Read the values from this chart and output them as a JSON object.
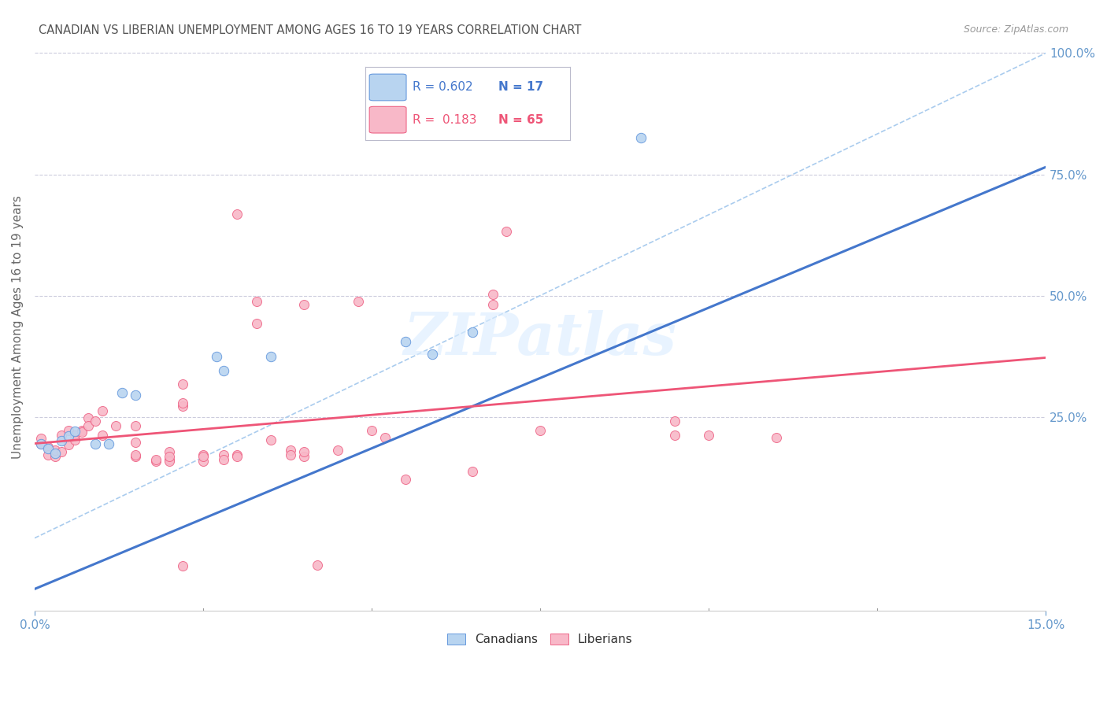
{
  "title": "CANADIAN VS LIBERIAN UNEMPLOYMENT AMONG AGES 16 TO 19 YEARS CORRELATION CHART",
  "source": "Source: ZipAtlas.com",
  "ylabel": "Unemployment Among Ages 16 to 19 years",
  "x_min": 0.0,
  "x_max": 0.15,
  "y_min": -0.15,
  "y_max": 1.02,
  "y_ticks_right": [
    0.25,
    0.5,
    0.75,
    1.0
  ],
  "y_tick_labels_right": [
    "25.0%",
    "50.0%",
    "75.0%",
    "100.0%"
  ],
  "legend_R_canadian": "0.602",
  "legend_N_canadian": "17",
  "legend_R_liberian": "0.183",
  "legend_N_liberian": "65",
  "canadian_color": "#b8d4f0",
  "liberian_color": "#f8b8c8",
  "canadian_edge_color": "#6699dd",
  "liberian_edge_color": "#ee6688",
  "canadian_line_color": "#4477cc",
  "liberian_line_color": "#ee5577",
  "diagonal_color": "#aaccee",
  "watermark": "ZIPatlas",
  "canadian_points": [
    [
      0.001,
      0.195
    ],
    [
      0.002,
      0.185
    ],
    [
      0.003,
      0.175
    ],
    [
      0.004,
      0.2
    ],
    [
      0.005,
      0.21
    ],
    [
      0.006,
      0.22
    ],
    [
      0.009,
      0.195
    ],
    [
      0.011,
      0.195
    ],
    [
      0.013,
      0.3
    ],
    [
      0.015,
      0.295
    ],
    [
      0.027,
      0.375
    ],
    [
      0.028,
      0.345
    ],
    [
      0.035,
      0.375
    ],
    [
      0.055,
      0.405
    ],
    [
      0.059,
      0.38
    ],
    [
      0.065,
      0.425
    ],
    [
      0.09,
      0.825
    ]
  ],
  "liberian_points": [
    [
      0.001,
      0.195
    ],
    [
      0.001,
      0.205
    ],
    [
      0.002,
      0.188
    ],
    [
      0.002,
      0.172
    ],
    [
      0.003,
      0.168
    ],
    [
      0.003,
      0.182
    ],
    [
      0.004,
      0.178
    ],
    [
      0.004,
      0.212
    ],
    [
      0.005,
      0.222
    ],
    [
      0.005,
      0.192
    ],
    [
      0.006,
      0.212
    ],
    [
      0.006,
      0.202
    ],
    [
      0.007,
      0.222
    ],
    [
      0.007,
      0.218
    ],
    [
      0.008,
      0.248
    ],
    [
      0.008,
      0.232
    ],
    [
      0.009,
      0.242
    ],
    [
      0.01,
      0.262
    ],
    [
      0.01,
      0.212
    ],
    [
      0.012,
      0.232
    ],
    [
      0.015,
      0.198
    ],
    [
      0.015,
      0.168
    ],
    [
      0.015,
      0.172
    ],
    [
      0.015,
      0.232
    ],
    [
      0.018,
      0.158
    ],
    [
      0.018,
      0.162
    ],
    [
      0.02,
      0.162
    ],
    [
      0.02,
      0.158
    ],
    [
      0.02,
      0.178
    ],
    [
      0.02,
      0.168
    ],
    [
      0.022,
      0.318
    ],
    [
      0.022,
      0.272
    ],
    [
      0.022,
      0.278
    ],
    [
      0.025,
      0.158
    ],
    [
      0.025,
      0.172
    ],
    [
      0.025,
      0.168
    ],
    [
      0.028,
      0.172
    ],
    [
      0.028,
      0.162
    ],
    [
      0.03,
      0.172
    ],
    [
      0.03,
      0.168
    ],
    [
      0.033,
      0.442
    ],
    [
      0.033,
      0.488
    ],
    [
      0.035,
      0.202
    ],
    [
      0.038,
      0.182
    ],
    [
      0.038,
      0.172
    ],
    [
      0.04,
      0.168
    ],
    [
      0.04,
      0.178
    ],
    [
      0.042,
      -0.055
    ],
    [
      0.045,
      0.182
    ],
    [
      0.048,
      0.488
    ],
    [
      0.05,
      0.222
    ],
    [
      0.052,
      0.208
    ],
    [
      0.055,
      0.122
    ],
    [
      0.065,
      0.138
    ],
    [
      0.068,
      0.482
    ],
    [
      0.068,
      0.502
    ],
    [
      0.075,
      0.222
    ],
    [
      0.095,
      0.212
    ],
    [
      0.095,
      0.242
    ],
    [
      0.1,
      0.212
    ],
    [
      0.11,
      0.208
    ],
    [
      0.07,
      0.632
    ],
    [
      0.03,
      0.668
    ],
    [
      0.04,
      0.482
    ],
    [
      0.022,
      -0.058
    ]
  ],
  "can_trend": [
    -0.105,
    5.8
  ],
  "lib_trend": [
    0.195,
    1.18
  ],
  "background_color": "#ffffff",
  "grid_color": "#ccccdd",
  "title_color": "#555555",
  "axis_color": "#6699cc"
}
